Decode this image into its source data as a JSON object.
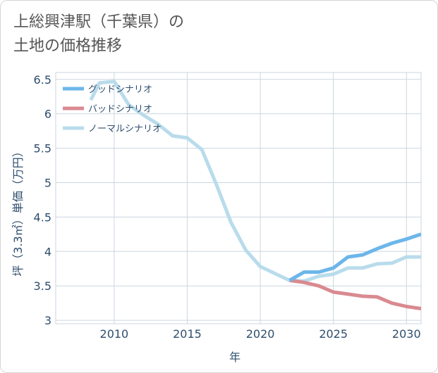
{
  "title_lines": [
    "上総興津駅（千葉県）の",
    "土地の価格推移"
  ],
  "colors": {
    "good": "#6cb6ea",
    "bad": "#d98a90",
    "normal": "#b9dcec",
    "grid": "#ccd6e0",
    "axis_text": "#2f4e6e"
  },
  "chart_data": {
    "type": "line",
    "xlabel": "年",
    "ylabel": "坪（3.3㎡）単価（万円）",
    "xlim": [
      2006,
      2031
    ],
    "ylim": [
      2.95,
      6.6
    ],
    "x_ticks": [
      2010,
      2015,
      2020,
      2025,
      2030
    ],
    "y_ticks": [
      3,
      3.5,
      4,
      4.5,
      5,
      5.5,
      6,
      6.5
    ],
    "y_tick_labels": [
      "3",
      "3.5",
      "4",
      "4.5",
      "5",
      "5.5",
      "6",
      "6.5"
    ],
    "legend_position": "top-left",
    "series": [
      {
        "name": "グッドシナリオ",
        "color": "#6cb6ea",
        "x": [
          2022,
          2023,
          2024,
          2025,
          2026,
          2027,
          2028,
          2029,
          2030,
          2031
        ],
        "y": [
          3.58,
          3.7,
          3.7,
          3.76,
          3.92,
          3.95,
          4.04,
          4.12,
          4.18,
          4.25
        ]
      },
      {
        "name": "バッドシナリオ",
        "color": "#d98a90",
        "x": [
          2022,
          2023,
          2024,
          2025,
          2026,
          2027,
          2028,
          2029,
          2030,
          2031
        ],
        "y": [
          3.58,
          3.55,
          3.5,
          3.41,
          3.38,
          3.35,
          3.34,
          3.25,
          3.2,
          3.17
        ]
      },
      {
        "name": "ノーマルシナリオ",
        "color": "#b9dcec",
        "x": [
          2008.4,
          2009,
          2010,
          2011,
          2012,
          2013,
          2014,
          2015,
          2016,
          2017,
          2018,
          2019,
          2020,
          2021,
          2022,
          2023,
          2024,
          2025,
          2026,
          2027,
          2028,
          2029,
          2030,
          2031
        ],
        "y": [
          6.2,
          6.45,
          6.47,
          6.13,
          5.98,
          5.85,
          5.68,
          5.65,
          5.48,
          4.97,
          4.42,
          4.02,
          3.78,
          3.68,
          3.58,
          3.57,
          3.64,
          3.67,
          3.76,
          3.76,
          3.82,
          3.83,
          3.92,
          3.92
        ]
      }
    ]
  }
}
